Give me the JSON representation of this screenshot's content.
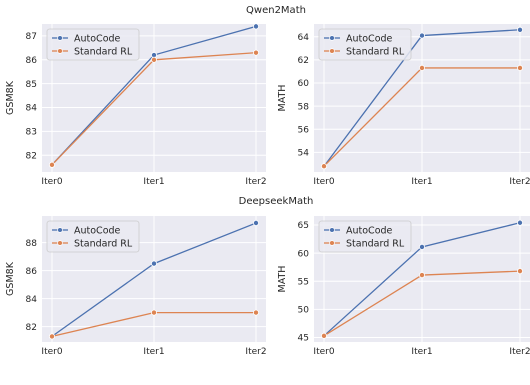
{
  "colors": {
    "panel_bg": "#eaeaf2",
    "grid": "#ffffff",
    "autocode": "#4c72b0",
    "standard_rl": "#dd8452",
    "text": "#262626"
  },
  "group_titles": [
    "Qwen2Math",
    "DeepseekMath"
  ],
  "chart_data": [
    {
      "type": "line",
      "group": "Qwen2Math",
      "x": [
        "Iter0",
        "Iter1",
        "Iter2"
      ],
      "ylabel": "GSM8K",
      "ylim": [
        81.3,
        87.5
      ],
      "yticks": [
        82,
        83,
        84,
        85,
        86,
        87
      ],
      "grid": true,
      "legend": "top-left",
      "series": [
        {
          "name": "AutoCode",
          "values": [
            81.6,
            86.2,
            87.4
          ]
        },
        {
          "name": "Standard RL",
          "values": [
            81.6,
            86.0,
            86.3
          ]
        }
      ]
    },
    {
      "type": "line",
      "group": "Qwen2Math",
      "x": [
        "Iter0",
        "Iter1",
        "Iter2"
      ],
      "ylabel": "MATH",
      "ylim": [
        52.3,
        65.1
      ],
      "yticks": [
        54,
        56,
        58,
        60,
        62,
        64
      ],
      "grid": true,
      "legend": "top-left",
      "series": [
        {
          "name": "AutoCode",
          "values": [
            52.8,
            64.1,
            64.6
          ]
        },
        {
          "name": "Standard RL",
          "values": [
            52.8,
            61.3,
            61.3
          ]
        }
      ]
    },
    {
      "type": "line",
      "group": "DeepseekMath",
      "x": [
        "Iter0",
        "Iter1",
        "Iter2"
      ],
      "ylabel": "GSM8K",
      "ylim": [
        80.9,
        89.9
      ],
      "yticks": [
        82,
        84,
        86,
        88
      ],
      "grid": true,
      "legend": "top-left",
      "series": [
        {
          "name": "AutoCode",
          "values": [
            81.3,
            86.5,
            89.4
          ]
        },
        {
          "name": "Standard RL",
          "values": [
            81.3,
            83.0,
            83.0
          ]
        }
      ]
    },
    {
      "type": "line",
      "group": "DeepseekMath",
      "x": [
        "Iter0",
        "Iter1",
        "Iter2"
      ],
      "ylabel": "MATH",
      "ylim": [
        44.2,
        66.6
      ],
      "yticks": [
        45,
        50,
        55,
        60,
        65
      ],
      "grid": true,
      "legend": "top-left",
      "series": [
        {
          "name": "AutoCode",
          "values": [
            45.3,
            61.1,
            65.4
          ]
        },
        {
          "name": "Standard RL",
          "values": [
            45.3,
            56.1,
            56.8
          ]
        }
      ]
    }
  ]
}
